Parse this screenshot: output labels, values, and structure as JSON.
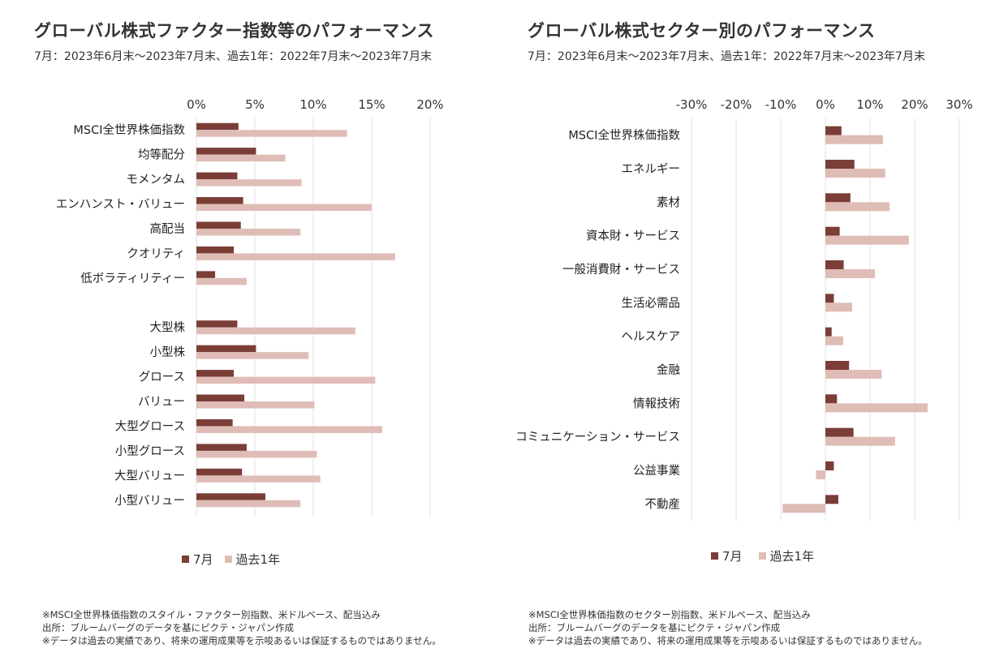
{
  "colors": {
    "july": "#7a3e37",
    "year": "#dfbdb6",
    "grid": "#e2e2e2"
  },
  "left": {
    "title": "グローバル株式ファクター指数等のパフォーマンス",
    "subtitle": "7月：2023年6月末～2023年7月末、過去1年：2022年7月末～2023年7月末",
    "legend": {
      "july": "7月",
      "year": "過去1年"
    },
    "notes": [
      "※MSCI全世界株価指数のスタイル・ファクター別指数、米ドルベース、配当込み",
      "出所：ブルームバーグのデータを基にピクテ・ジャパン作成",
      "※データは過去の実績であり、将来の運用成果等を示唆あるいは保証するものではありません。"
    ]
  },
  "right": {
    "title": "グローバル株式セクター別のパフォーマンス",
    "subtitle": "7月：2023年6月末～2023年7月末、過去1年：2022年7月末～2023年7月末",
    "legend": {
      "july": "7月",
      "year": "過去1年"
    },
    "notes": [
      "※MSCI全世界株価指数のセクター別指数、米ドルベース、配当込み",
      "出所：ブルームバーグのデータを基にピクテ・ジャパン作成",
      "※データは過去の実績であり、将来の運用成果等を示唆あるいは保証するものではありません。"
    ]
  },
  "chart_data": [
    {
      "type": "bar",
      "orientation": "horizontal",
      "xlim": [
        0,
        20
      ],
      "xticks": [
        "0%",
        "5%",
        "10%",
        "15%",
        "20%"
      ],
      "xtick_values": [
        0,
        5,
        10,
        15,
        20
      ],
      "grid": true,
      "legend_position": "bottom",
      "categories": [
        "MSCI全世界株価指数",
        "均等配分",
        "モメンタム",
        "エンハンスト・バリュー",
        "高配当",
        "クオリティ",
        "低ボラティリティー",
        "",
        "大型株",
        "小型株",
        "グロース",
        "バリュー",
        "大型グロース",
        "小型グロース",
        "大型バリュー",
        "小型バリュー"
      ],
      "series": [
        {
          "name": "7月",
          "values": [
            3.6,
            5.1,
            3.5,
            4.0,
            3.8,
            3.2,
            1.6,
            null,
            3.5,
            5.1,
            3.2,
            4.1,
            3.1,
            4.3,
            3.9,
            5.9
          ]
        },
        {
          "name": "過去1年",
          "values": [
            12.9,
            7.6,
            9.0,
            15.0,
            8.9,
            17.0,
            4.3,
            null,
            13.6,
            9.6,
            15.3,
            10.1,
            15.9,
            10.3,
            10.6,
            8.9
          ]
        }
      ]
    },
    {
      "type": "bar",
      "orientation": "horizontal",
      "xlim": [
        -30,
        30
      ],
      "xticks": [
        "-30%",
        "-20%",
        "-10%",
        "0%",
        "10%",
        "20%",
        "30%"
      ],
      "xtick_values": [
        -30,
        -20,
        -10,
        0,
        10,
        20,
        30
      ],
      "grid": true,
      "legend_position": "bottom",
      "categories": [
        "MSCI全世界株価指数",
        "エネルギー",
        "素材",
        "資本財・サービス",
        "一般消費財・サービス",
        "生活必需品",
        "ヘルスケア",
        "金融",
        "情報技術",
        "コミュニケーション・サービス",
        "公益事業",
        "不動産"
      ],
      "series": [
        {
          "name": "7月",
          "values": [
            3.6,
            6.5,
            5.6,
            3.2,
            4.1,
            1.9,
            1.4,
            5.3,
            2.6,
            6.3,
            1.9,
            2.9
          ]
        },
        {
          "name": "過去1年",
          "values": [
            12.9,
            13.4,
            14.4,
            18.7,
            11.1,
            6.0,
            4.0,
            12.6,
            22.9,
            15.6,
            -2.1,
            -9.6
          ]
        }
      ]
    }
  ]
}
